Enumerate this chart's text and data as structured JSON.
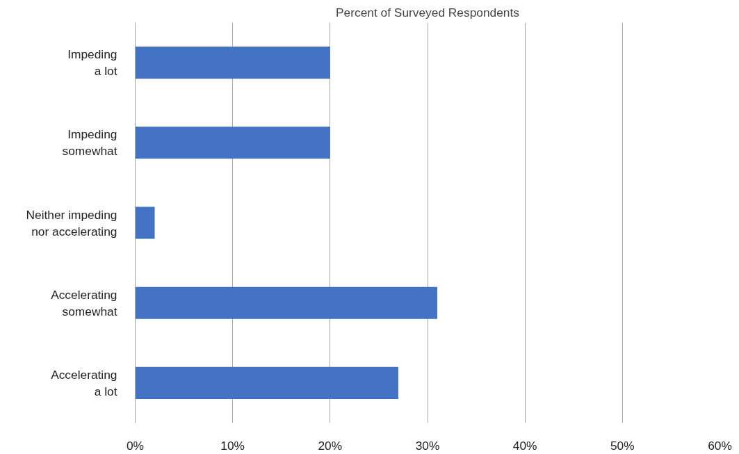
{
  "chart_data": {
    "type": "bar",
    "orientation": "horizontal",
    "title": "Percent of Surveyed Respondents",
    "categories": [
      "Impeding\na lot",
      "Impeding\nsomewhat",
      "Neither impeding\nnor accelerating",
      "Accelerating\nsomewhat",
      "Accelerating\na lot"
    ],
    "values": [
      20,
      20,
      2,
      31,
      27
    ],
    "color": "#4472c4",
    "xlim": [
      0,
      60
    ],
    "xticks": [
      {
        "value": 0,
        "label": "0%"
      },
      {
        "value": 10,
        "label": "10%"
      },
      {
        "value": 20,
        "label": "20%"
      },
      {
        "value": 30,
        "label": "30%"
      },
      {
        "value": 40,
        "label": "40%"
      },
      {
        "value": 50,
        "label": "50%"
      },
      {
        "value": 60,
        "label": "60%"
      }
    ],
    "grid": "x"
  }
}
